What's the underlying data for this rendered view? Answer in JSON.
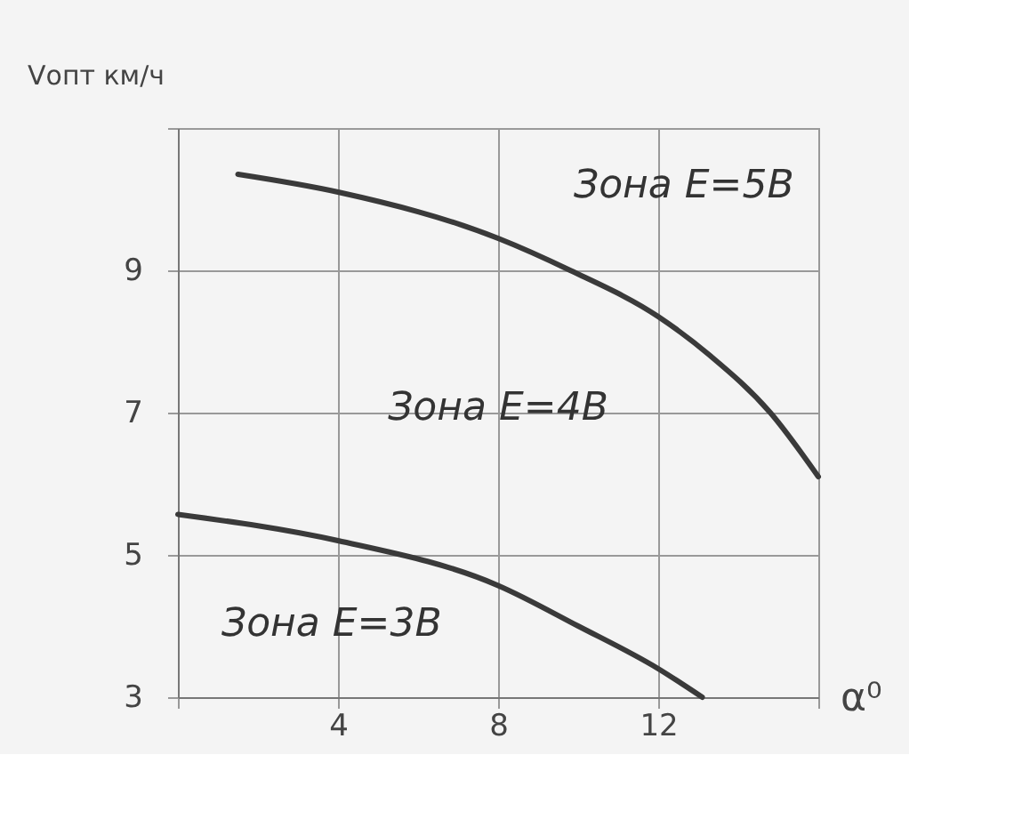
{
  "chart_data": {
    "type": "line",
    "xlabel": "α⁰",
    "ylabel": "Vопт км/ч",
    "xlim": [
      0,
      16
    ],
    "xticks": [
      {
        "value": 0,
        "label": null
      },
      4,
      8,
      12,
      {
        "value": 16,
        "label": null
      }
    ],
    "ylim": [
      3,
      11
    ],
    "yticks": [
      3,
      5,
      7,
      9,
      {
        "value": 11,
        "label": null
      }
    ],
    "grid": true,
    "marker": "none",
    "line_style": "solid",
    "series": [
      {
        "color": "#3a3a3a",
        "x": [
          1.5,
          4,
          8,
          9.8,
          12,
          13.3,
          14.8,
          16
        ],
        "values": [
          10.35,
          10.1,
          9.45,
          9.0,
          8.35,
          7.8,
          7.0,
          6.1
        ]
      },
      {
        "color": "#3a3a3a",
        "x": [
          0,
          4,
          8,
          10,
          12,
          13.1
        ],
        "values": [
          5.57,
          5.2,
          4.57,
          4.0,
          3.4,
          3.0
        ]
      }
    ],
    "annotations": [
      "Зона E=5B",
      "Зона E=4B",
      "Зона E=3B"
    ]
  }
}
